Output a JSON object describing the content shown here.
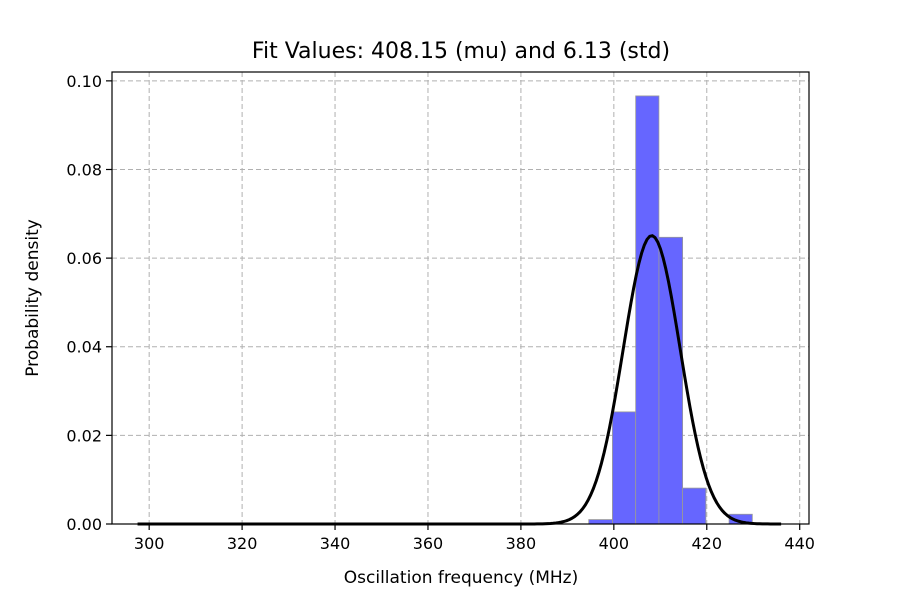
{
  "chart_data": {
    "type": "bar",
    "title": "Fit Values: 408.15 (mu) and 6.13 (std)",
    "xlabel": "Oscillation frequency (MHz)",
    "ylabel": "Probability density",
    "xlim": [
      292,
      442
    ],
    "ylim": [
      0,
      0.102
    ],
    "xticks": [
      300,
      320,
      340,
      360,
      380,
      400,
      420,
      440
    ],
    "xtick_labels": [
      "300",
      "320",
      "340",
      "360",
      "380",
      "400",
      "420",
      "440"
    ],
    "yticks": [
      0,
      0.02,
      0.04,
      0.06,
      0.08,
      0.1
    ],
    "ytick_labels": [
      "0.00",
      "0.02",
      "0.04",
      "0.06",
      "0.08",
      "0.10"
    ],
    "grid": true,
    "histogram": {
      "bin_edges": [
        394.6,
        399.7,
        404.7,
        409.7,
        414.8,
        419.8,
        424.8,
        429.8
      ],
      "values": [
        0.001,
        0.0253,
        0.0966,
        0.0647,
        0.0081,
        0.0,
        0.0022
      ],
      "color": "#6666ff"
    },
    "fit_curve": {
      "mu": 408.15,
      "std": 6.13,
      "x_range": [
        297.5,
        436.0
      ],
      "color": "#000000"
    }
  }
}
